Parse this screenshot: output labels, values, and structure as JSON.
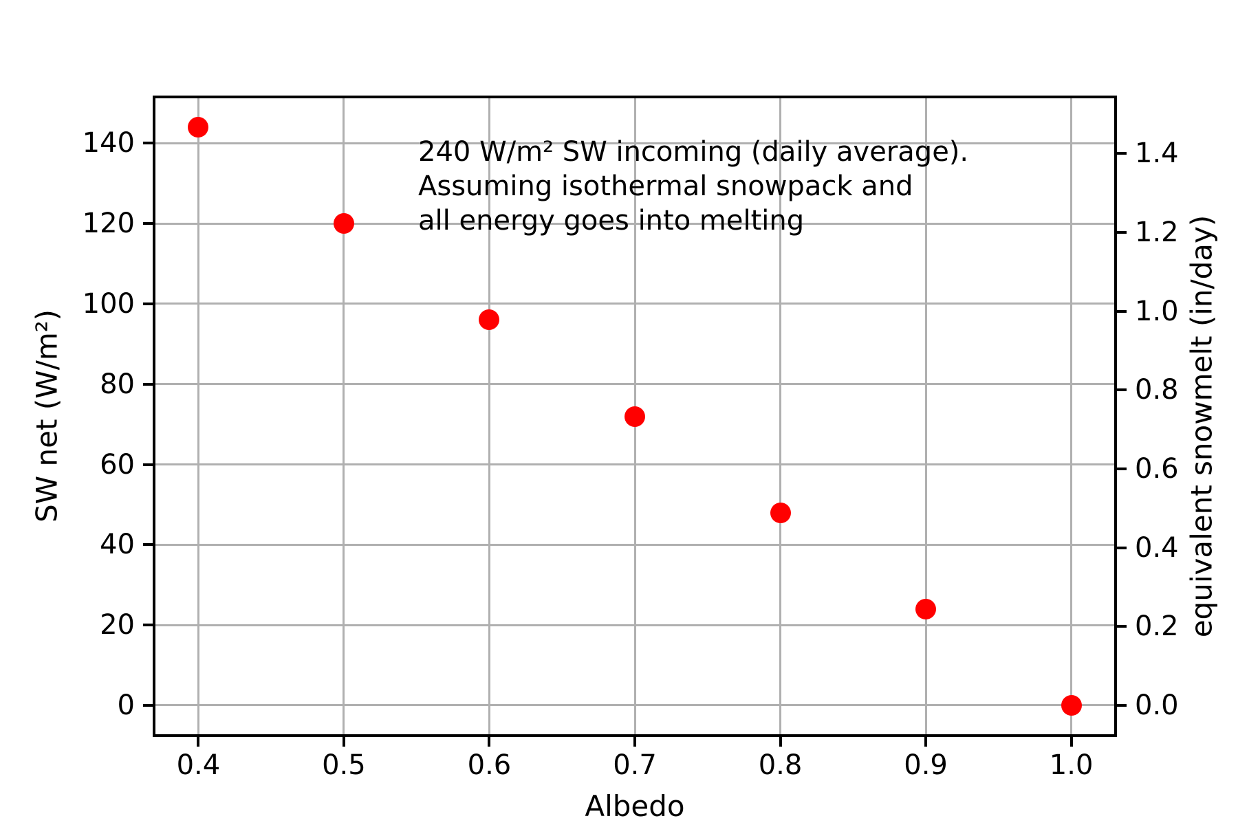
{
  "chart_data": {
    "type": "scatter",
    "title": "",
    "xlabel": "Albedo",
    "ylabel_left": "SW net (W/m²)",
    "ylabel_right": "equivalent snowmelt (in/day)",
    "x": [
      0.4,
      0.5,
      0.6,
      0.7,
      0.8,
      0.9,
      1.0
    ],
    "series": [
      {
        "name": "SW net",
        "values": [
          144,
          120,
          96,
          72,
          48,
          24,
          0
        ]
      }
    ],
    "melt_equivalent_in_per_day": [
      1.47,
      1.22,
      0.98,
      0.73,
      0.49,
      0.24,
      0.0
    ],
    "annotation": {
      "lines": [
        "240 W/m² SW incoming (daily average).",
        "Assuming isothermal snowpack and",
        "all energy goes into melting"
      ]
    },
    "x_ticks": [
      "0.4",
      "0.5",
      "0.6",
      "0.7",
      "0.8",
      "0.9",
      "1.0"
    ],
    "y_ticks_left": [
      "0",
      "20",
      "40",
      "60",
      "80",
      "100",
      "120",
      "140"
    ],
    "y_ticks_right": [
      "0.0",
      "0.2",
      "0.4",
      "0.6",
      "0.8",
      "1.0",
      "1.2",
      "1.4"
    ],
    "xlim": [
      0.3705,
      1.0295
    ],
    "ylim_left": [
      -7.2,
      151.2
    ],
    "ylim_right": [
      -0.0733,
      1.54
    ],
    "grid": true,
    "legend": "none",
    "marker_color": "#ff0000",
    "grid_color": "#b0b0b0",
    "frame_color": "#000000",
    "text_color": "#000000"
  }
}
